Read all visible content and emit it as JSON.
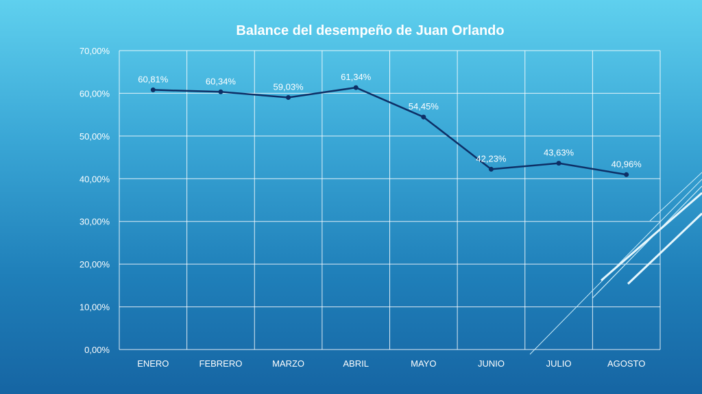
{
  "chart_data": {
    "type": "line",
    "title": "Balance del desempeño de Juan Orlando",
    "categories": [
      "ENERO",
      "FEBRERO",
      "MARZO",
      "ABRIL",
      "MAYO",
      "JUNIO",
      "JULIO",
      "AGOSTO"
    ],
    "series": [
      {
        "values": [
          60.81,
          60.34,
          59.03,
          61.34,
          54.45,
          42.23,
          43.63,
          40.96
        ],
        "labels": [
          "60,81%",
          "60,34%",
          "59,03%",
          "61,34%",
          "54,45%",
          "42,23%",
          "43,63%",
          "40,96%"
        ]
      }
    ],
    "ylim": [
      0,
      70
    ],
    "yticks": [
      "0,00%",
      "10,00%",
      "20,00%",
      "30,00%",
      "40,00%",
      "50,00%",
      "60,00%",
      "70,00%"
    ],
    "grid": true,
    "line_color": "#0d2f66",
    "grid_color": "#ffffff"
  }
}
